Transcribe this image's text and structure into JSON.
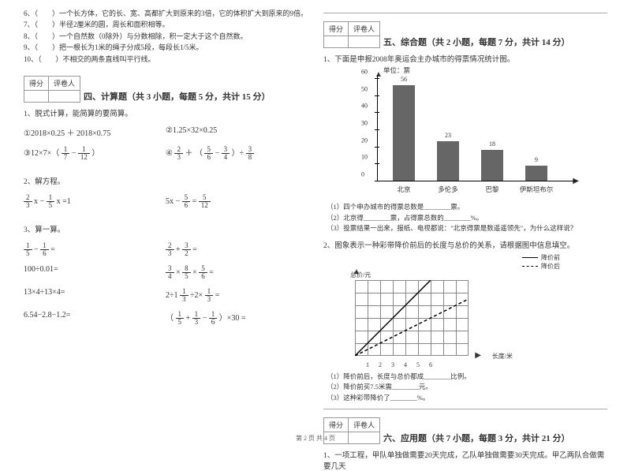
{
  "judgment": {
    "q6": "6、（　　）一个长方体，它的长、宽、高都扩大到原来的3倍，它的体积扩大到原来的9倍。",
    "q7": "7、（　　）半径2厘米的圆，周长和面积相等。",
    "q8": "8、（　　）一个自然数（0除外）与分数相除，积一定大于这个自然数。",
    "q9": "9、（　　）把一根长为1米的绳子分成5段，每段长1/5米。",
    "q10": "10、（　　）不相交的两条直线叫平行线。"
  },
  "score_labels": {
    "score": "得分",
    "rater": "评卷人"
  },
  "section4": {
    "title": "四、计算题（共 3 小题，每题 5 分，共计 15 分）",
    "q1": "1、脱式计算，能简算的要简算。",
    "e1": "①2018×0.25 ＋ 2018×0.75",
    "e2": "②1.25×32×0.25",
    "e3_pre": "③12×7×（",
    "e3_mid": " − ",
    "e3_post": "）",
    "e4_pre": "④",
    "e4_mid1": " ＋ （",
    "e4_mid2": " − ",
    "e4_mid3": "）÷ ",
    "q2": "2、解方程。",
    "eq2a_mid": " x − ",
    "eq2a_post": " x =1",
    "eq2b_pre": "5x − ",
    "eq2b_mid": " = ",
    "q3": "3、算一算。",
    "c1_mid": " − ",
    "c1_post": " =",
    "c2_mid": " + ",
    "c2_post": " =",
    "c3": "100÷0.01=",
    "c4_a": " × ",
    "c4_b": " × ",
    "c4_post": " =",
    "c5": "13×4÷13×4=",
    "c6_pre": "2÷1",
    "c6_mid": "÷2×",
    "c6_post": " =",
    "c7": "6.54−2.8−1.2=",
    "c8_pre": "（",
    "c8_mid1": " + ",
    "c8_mid2": " − ",
    "c8_post": "）×30 ="
  },
  "section5": {
    "title": "五、综合题（共 2 小题，每题 7 分，共计 14 分）",
    "q1": "1、下面是申报2008年奥运会主办城市的得票情况统计图。",
    "chart": {
      "unit": "单位：票",
      "ymax": 60,
      "ytick_step": 10,
      "categories": [
        "北京",
        "多伦多",
        "巴黎",
        "伊斯坦布尔"
      ],
      "values": [
        56,
        23,
        18,
        9
      ],
      "bar_color": "#666666",
      "axis_color": "#000000"
    },
    "sub1": "（1）四个申办城市的得票总数是________票。",
    "sub2": "（2）北京得________票，占得票总数的________%。",
    "sub3": "（3）投票结果一出来，报纸、电视都说：\"北京得票是数遥遥领先\"，为什么这样说？",
    "q2": "2、图象表示一种彩带降价前后的长度与总价的关系，请根据图中信息填空。",
    "chart2": {
      "legend_before": "降价前",
      "legend_after": "降价后",
      "ylabel": "总价/元",
      "xlabel": "长度/米",
      "xticks": [
        "1",
        "2",
        "3",
        "4",
        "5",
        "6"
      ],
      "grid_color": "#888888",
      "solid_line": [
        [
          0,
          0
        ],
        [
          96,
          96
        ]
      ],
      "dashed_line": [
        [
          0,
          0
        ],
        [
          144,
          72
        ]
      ]
    },
    "sub2_1": "（1）降价前后，长度与总价都成________比例。",
    "sub2_2": "（2）降价前买7.5米需________元。",
    "sub2_3": "（3）这种彩带降价了________%。"
  },
  "section6": {
    "title": "六、应用题（共 7 小题，每题 3 分，共计 21 分）",
    "q1": "1、一项工程，甲队单独做需要20天完成，乙队单独做需要30天完成。甲乙两队合做需要几天"
  },
  "footer": "第 2 页 共 4 页"
}
